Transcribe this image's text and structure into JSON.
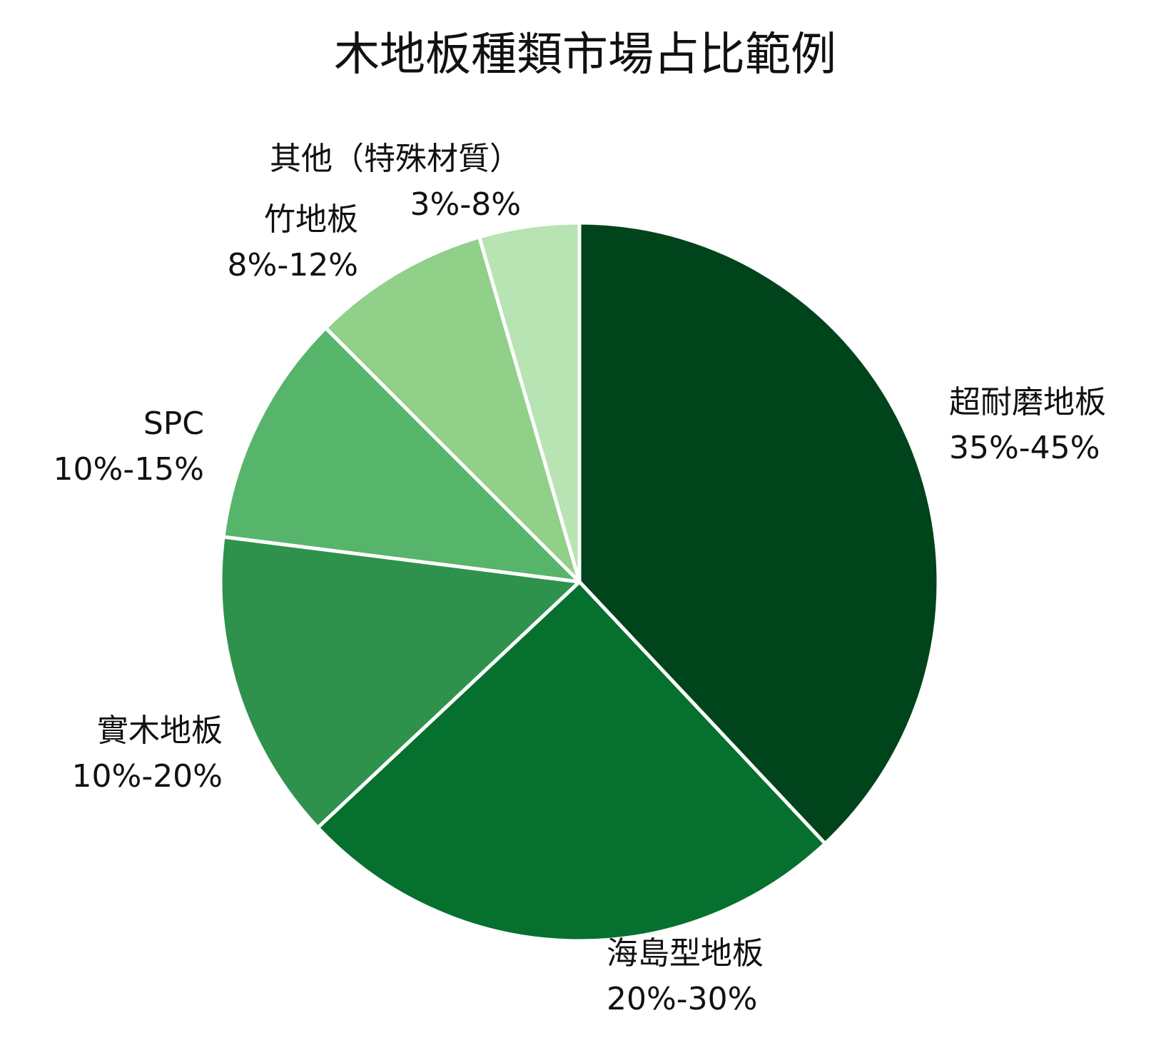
{
  "chart_data": {
    "type": "pie",
    "title": "木地板種類市場占比範例",
    "start": "12 o'clock",
    "direction": "clockwise",
    "slices": [
      {
        "name": "超耐磨地板",
        "range": "35%-45%",
        "value": 38,
        "color": "#00441b"
      },
      {
        "name": "海島型地板",
        "range": "20%-30%",
        "value": 25,
        "color": "#06702f"
      },
      {
        "name": "實木地板",
        "range": "10%-20%",
        "value": 14,
        "color": "#2e924d"
      },
      {
        "name": "SPC",
        "range": "10%-15%",
        "value": 10.5,
        "color": "#56b56b"
      },
      {
        "name": "竹地板",
        "range": "8%-12%",
        "value": 8,
        "color": "#90d089"
      },
      {
        "name": "其他（特殊材質）",
        "range": "3%-8%",
        "value": 4.5,
        "color": "#b8e3b3"
      }
    ]
  }
}
